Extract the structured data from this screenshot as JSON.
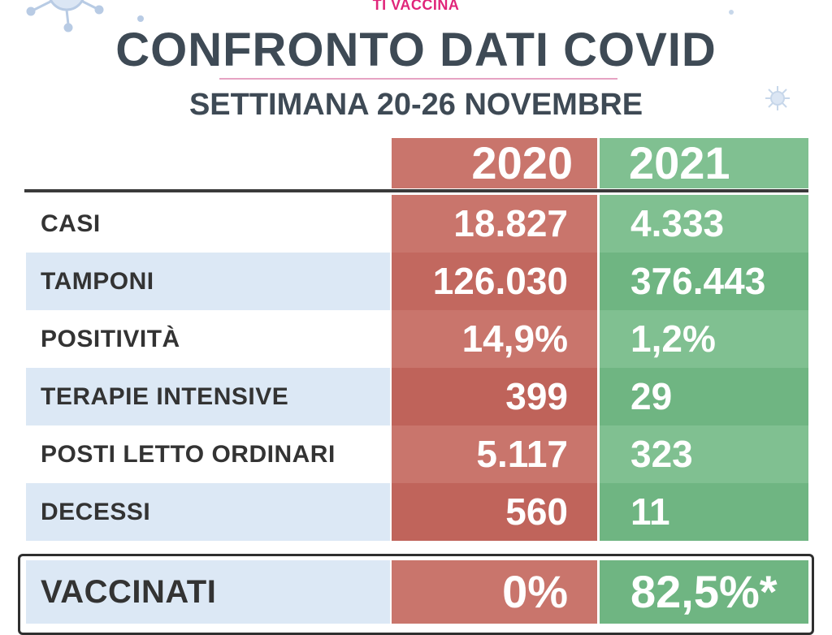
{
  "brand": "TI VACCINA",
  "title": "CONFRONTO DATI COVID",
  "subtitle": "SETTIMANA 20-26 NOVEMBRE",
  "years": [
    "2020",
    "2021"
  ],
  "rows": [
    {
      "label": "CASI",
      "v2020": "18.827",
      "v2021": "4.333"
    },
    {
      "label": "TAMPONI",
      "v2020": "126.030",
      "v2021": "376.443"
    },
    {
      "label": "POSITIVITÀ",
      "v2020": "14,9%",
      "v2021": "1,2%"
    },
    {
      "label": "TERAPIE INTENSIVE",
      "v2020": "399",
      "v2021": "29"
    },
    {
      "label": "POSTI LETTO ORDINARI",
      "v2020": "5.117",
      "v2021": "323"
    },
    {
      "label": "DECESSI",
      "v2020": "560",
      "v2021": "11"
    }
  ],
  "vaccinati": {
    "label": "VACCINATI",
    "v2020": "0%",
    "v2021": "82,5%*"
  },
  "colors": {
    "brand": "#e0257a",
    "title": "#3e4a55",
    "red_2020": [
      "#c9756c",
      "#c2685f",
      "#c9756c",
      "#bf635a",
      "#c9756c",
      "#c0645b"
    ],
    "green_2021": [
      "#80c091",
      "#6fb582",
      "#80c091",
      "#6fb582",
      "#80c091",
      "#6fb582"
    ],
    "row_shade": "#dce8f5"
  }
}
